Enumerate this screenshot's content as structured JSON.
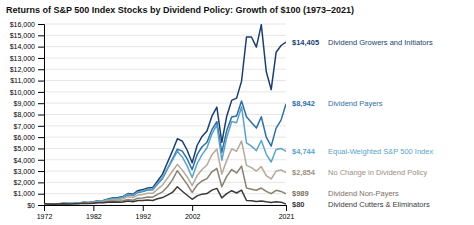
{
  "chart_data": {
    "type": "line",
    "title": "Returns of S&P 500 Index Stocks by Dividend Policy: Growth of $100 (1973–2021)",
    "x": [
      1972,
      1973,
      1974,
      1975,
      1976,
      1977,
      1978,
      1979,
      1980,
      1981,
      1982,
      1983,
      1984,
      1985,
      1986,
      1987,
      1988,
      1989,
      1990,
      1991,
      1992,
      1993,
      1994,
      1995,
      1996,
      1997,
      1998,
      1999,
      2000,
      2001,
      2002,
      2003,
      2004,
      2005,
      2006,
      2007,
      2008,
      2009,
      2010,
      2011,
      2012,
      2013,
      2014,
      2015,
      2016,
      2017,
      2018,
      2019,
      2020,
      2021
    ],
    "series": [
      {
        "name": "Dividend Growers and Initiators",
        "color": "#1a3f6f",
        "values": [
          100,
          96,
          78,
          110,
          148,
          142,
          154,
          187,
          238,
          231,
          285,
          378,
          400,
          522,
          632,
          658,
          762,
          1010,
          944,
          1262,
          1362,
          1512,
          1540,
          2120,
          2730,
          3750,
          4760,
          5860,
          5640,
          4840,
          3740,
          5260,
          6060,
          6550,
          7850,
          8650,
          5540,
          7850,
          9250,
          9450,
          10950,
          14850,
          14850,
          13950,
          15950,
          11800,
          10200,
          13500,
          14100,
          14405
        ]
      },
      {
        "name": "Dividend Payers",
        "color": "#2e6fa3",
        "values": [
          100,
          95,
          75,
          102,
          133,
          129,
          139,
          166,
          210,
          204,
          252,
          334,
          354,
          465,
          561,
          580,
          677,
          898,
          836,
          1110,
          1190,
          1320,
          1350,
          1845,
          2350,
          3190,
          4050,
          4940,
          4760,
          4070,
          3130,
          4450,
          5150,
          5550,
          6660,
          7360,
          4650,
          6580,
          7780,
          7870,
          9190,
          7800,
          7300,
          6800,
          7800,
          6000,
          5200,
          6800,
          7500,
          8942
        ]
      },
      {
        "name": "Equal-Weighted S&P 500 Index",
        "color": "#5ba3c9",
        "values": [
          100,
          94,
          72,
          104,
          140,
          133,
          149,
          184,
          230,
          216,
          261,
          365,
          382,
          495,
          586,
          596,
          707,
          950,
          866,
          1160,
          1242,
          1393,
          1414,
          1919,
          2425,
          3235,
          3945,
          4760,
          4250,
          3440,
          2428,
          3646,
          4450,
          5060,
          6270,
          7080,
          3956,
          5970,
          7375,
          7280,
          8690,
          5500,
          5200,
          4800,
          5700,
          4500,
          3800,
          4900,
          5000,
          4744
        ]
      },
      {
        "name": "No Change in Dividend Policy",
        "color": "#b5a99a",
        "values": [
          100,
          93,
          70,
          98,
          126,
          119,
          129,
          155,
          194,
          182,
          221,
          298,
          311,
          404,
          473,
          470,
          556,
          738,
          667,
          879,
          929,
          1031,
          1031,
          1404,
          1768,
          2375,
          2985,
          3590,
          3082,
          2478,
          1718,
          2578,
          3133,
          3540,
          4447,
          4957,
          2730,
          3945,
          4957,
          4752,
          5664,
          3500,
          3300,
          3000,
          3400,
          2600,
          2300,
          3000,
          3100,
          2854
        ]
      },
      {
        "name": "Dividend Non-Payers",
        "color": "#8a8070",
        "values": [
          100,
          90,
          62,
          92,
          117,
          106,
          113,
          133,
          172,
          157,
          182,
          241,
          243,
          301,
          344,
          323,
          372,
          496,
          424,
          607,
          627,
          708,
          688,
          940,
          1163,
          1618,
          2225,
          3035,
          2428,
          1821,
          1112,
          1770,
          2126,
          2329,
          2934,
          3236,
          1618,
          2530,
          3136,
          2833,
          3440,
          1500,
          1400,
          1300,
          1500,
          1200,
          1000,
          1300,
          1200,
          989
        ]
      },
      {
        "name": "Dividend Cutters & Eliminators",
        "color": "#3a3a3a",
        "values": [
          100,
          88,
          60,
          85,
          109,
          96,
          101,
          116,
          150,
          135,
          154,
          197,
          192,
          238,
          265,
          233,
          273,
          359,
          283,
          399,
          404,
          435,
          404,
          546,
          658,
          869,
          1112,
          1618,
          1213,
          859,
          505,
          809,
          960,
          1011,
          1314,
          1466,
          627,
          1011,
          1264,
          1062,
          1314,
          400,
          370,
          320,
          360,
          280,
          220,
          280,
          250,
          80
        ]
      }
    ],
    "annotations": [
      {
        "value": 14405,
        "text": "$14,405",
        "label": "Dividend Growers and Initiators",
        "color": "#1a3f6f"
      },
      {
        "value": 8942,
        "text": "$8,942",
        "label": "Dividend Payers",
        "color": "#2e6fa3"
      },
      {
        "value": 4744,
        "text": "$4,744",
        "label": "Equal-Weighted S&P 500 Index",
        "color": "#5ba3c9"
      },
      {
        "value": 2854,
        "text": "$2,854",
        "label": "No Change in Dividend Policy",
        "color": "#9a9080"
      },
      {
        "value": 989,
        "text": "$989",
        "label": "Dividend Non-Payers",
        "color": "#7a7060"
      },
      {
        "value": 80,
        "text": "$80",
        "label": "Dividend Cutters & Eliminators",
        "color": "#3a3a3a"
      }
    ],
    "xlim": [
      1972,
      2021
    ],
    "xticks": [
      1972,
      1982,
      1992,
      2002,
      2021
    ],
    "ylim": [
      0,
      16000
    ],
    "yticks": [
      {
        "value": 0,
        "label": "$0"
      },
      {
        "value": 1000,
        "label": "$1,000"
      },
      {
        "value": 2000,
        "label": "$2,000"
      },
      {
        "value": 3000,
        "label": "$3,000"
      },
      {
        "value": 4000,
        "label": "$4,000"
      },
      {
        "value": 5000,
        "label": "$5,000"
      },
      {
        "value": 6000,
        "label": "$6,000"
      },
      {
        "value": 7000,
        "label": "$7,000"
      },
      {
        "value": 8000,
        "label": "$8,000"
      },
      {
        "value": 9000,
        "label": "$9,000"
      },
      {
        "value": 10000,
        "label": "$10,000"
      },
      {
        "value": 11000,
        "label": "$11,000"
      },
      {
        "value": 12000,
        "label": "$12,000"
      },
      {
        "value": 13000,
        "label": "$13,000"
      },
      {
        "value": 14000,
        "label": "$14,000"
      },
      {
        "value": 15000,
        "label": "$15,000"
      },
      {
        "value": 16000,
        "label": "$16,000"
      }
    ],
    "grid": true
  }
}
